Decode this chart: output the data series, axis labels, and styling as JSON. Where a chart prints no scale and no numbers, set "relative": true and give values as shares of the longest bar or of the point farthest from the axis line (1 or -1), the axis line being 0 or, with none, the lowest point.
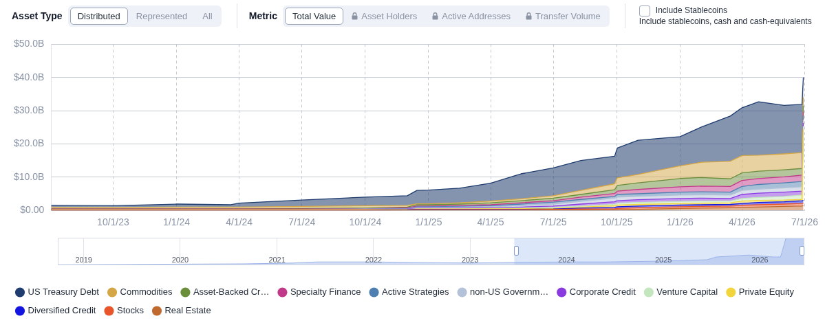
{
  "chart_data": [
    {
      "type": "area",
      "stacked": true,
      "legend": "bottom",
      "grid": true,
      "annotations": [
        "Asset Type",
        "Distributed",
        "Represented",
        "All",
        "Metric",
        "Total Value",
        "Asset Holders",
        "Active Addresses",
        "Transfer Volume",
        "Include Stablecoins",
        "Include stablecoins, cash and cash-equivalents"
      ],
      "xlim": [
        "2023-07-03",
        "2026-07-01"
      ],
      "xticks": [
        {
          "value": "2023-10-01",
          "label": "10/1/23"
        },
        {
          "value": "2024-01-01",
          "label": "1/1/24"
        },
        {
          "value": "2024-04-01",
          "label": "4/1/24"
        },
        {
          "value": "2024-07-01",
          "label": "7/1/24"
        },
        {
          "value": "2024-10-01",
          "label": "10/1/24"
        },
        {
          "value": "2025-01-01",
          "label": "1/1/25"
        },
        {
          "value": "2025-04-01",
          "label": "4/1/25"
        },
        {
          "value": "2025-07-01",
          "label": "7/1/25"
        },
        {
          "value": "2025-10-01",
          "label": "10/1/25"
        },
        {
          "value": "2026-01-01",
          "label": "1/1/26"
        },
        {
          "value": "2026-04-01",
          "label": "4/1/26"
        },
        {
          "value": "2026-07-01",
          "label": "7/1/26"
        }
      ],
      "ylim": [
        0,
        50
      ],
      "yticks": [
        {
          "value": 0,
          "label": "$0.00"
        },
        {
          "value": 10,
          "label": "$10.0B"
        },
        {
          "value": 20,
          "label": "$20.0B"
        },
        {
          "value": 30,
          "label": "$30.0B"
        },
        {
          "value": 40,
          "label": "$40.0B"
        },
        {
          "value": 50,
          "label": "$50.0B"
        }
      ],
      "x": [
        "2023-07-03",
        "2023-10-01",
        "2024-01-01",
        "2024-03-20",
        "2024-04-01",
        "2024-07-01",
        "2024-10-01",
        "2024-12-01",
        "2024-12-15",
        "2025-01-01",
        "2025-02-15",
        "2025-04-01",
        "2025-05-15",
        "2025-07-01",
        "2025-08-10",
        "2025-09-28",
        "2025-10-02",
        "2025-11-01",
        "2026-01-01",
        "2026-02-01",
        "2026-03-15",
        "2026-04-01",
        "2026-04-25",
        "2026-06-01",
        "2026-06-27",
        "2026-06-29"
      ],
      "series": [
        {
          "name": "Real Estate",
          "color": "#c06a30",
          "values": [
            0,
            0,
            0,
            0,
            0,
            0,
            0,
            0.1,
            0.1,
            0.1,
            0.1,
            0.1,
            0.1,
            0.1,
            0.1,
            0.2,
            0.2,
            0.3,
            0.6,
            0.7,
            0.8,
            0.9,
            1.0,
            1.2,
            1.3,
            1.4
          ]
        },
        {
          "name": "Stocks",
          "color": "#e8552a",
          "values": [
            0.1,
            0.1,
            0.1,
            0.1,
            0.1,
            0.1,
            0.1,
            0,
            0.1,
            0.1,
            0.1,
            0.1,
            0.1,
            0.2,
            0.3,
            0.3,
            0.4,
            0.5,
            0.5,
            0.5,
            0.5,
            0.6,
            0.7,
            0.7,
            0.8,
            0.8
          ]
        },
        {
          "name": "Diversified Credit",
          "color": "#1414e0",
          "values": [
            0,
            0,
            0,
            0,
            0,
            0,
            0,
            0.1,
            0.1,
            0.1,
            0.1,
            0.1,
            0.1,
            0.1,
            0.3,
            0.4,
            0.5,
            0.5,
            0.5,
            0.5,
            0.5,
            0.6,
            0.7,
            0.7,
            0.8,
            0.8
          ]
        },
        {
          "name": "Private Equity",
          "color": "#f2d43c",
          "values": [
            0.1,
            0.1,
            0.1,
            0.1,
            0.1,
            0.1,
            0.1,
            0,
            0.1,
            0.1,
            0.1,
            0.2,
            0.2,
            0.2,
            0.3,
            0.5,
            0.5,
            0.5,
            0.5,
            0.5,
            0.5,
            0.7,
            0.6,
            0.5,
            0.4,
            21.5
          ]
        },
        {
          "name": "Venture Capital",
          "color": "#c4e6bf",
          "values": [
            0,
            0,
            0,
            0,
            0,
            0,
            0,
            0.1,
            0.1,
            0.1,
            0.1,
            0.1,
            0.2,
            0.3,
            0.3,
            0.4,
            0.6,
            0.6,
            0.6,
            0.6,
            0.5,
            0.8,
            0.9,
            1.1,
            1.3,
            0.8
          ]
        },
        {
          "name": "Corporate Credit",
          "color": "#8a3be0",
          "values": [
            0.1,
            0.1,
            0.1,
            0.1,
            0.1,
            0.1,
            0.1,
            0.1,
            0.2,
            0.2,
            0.2,
            0.2,
            0.3,
            0.4,
            0.6,
            0.8,
            0.7,
            0.8,
            0.9,
            0.9,
            0.8,
            1.2,
            1.3,
            1.3,
            1.2,
            1.0
          ]
        },
        {
          "name": "non-US Governm…",
          "color": "#b3c2d8",
          "values": [
            0,
            0,
            0,
            0,
            0,
            0,
            0.1,
            0.1,
            0.2,
            0.2,
            0.3,
            0.3,
            0.4,
            0.6,
            0.8,
            1.1,
            1.1,
            1.0,
            1.0,
            1.0,
            1.0,
            1.2,
            1.2,
            1.3,
            1.3,
            1.0
          ]
        },
        {
          "name": "Active Strategies",
          "color": "#4f7fb0",
          "values": [
            0,
            0,
            0,
            0,
            0,
            0,
            0,
            0.1,
            0.2,
            0.2,
            0.2,
            0.3,
            0.5,
            0.6,
            0.6,
            0.5,
            0.8,
            0.8,
            0.9,
            0.9,
            0.9,
            1.2,
            1.4,
            1.5,
            1.6,
            1.2
          ]
        },
        {
          "name": "Specialty Finance",
          "color": "#c13a8a",
          "values": [
            0.1,
            0.1,
            0.1,
            0.1,
            0.1,
            0.1,
            0.1,
            0.2,
            0.2,
            0.2,
            0.3,
            0.3,
            0.4,
            0.4,
            0.7,
            0.9,
            1.0,
            1.3,
            1.6,
            1.7,
            1.7,
            1.8,
            1.8,
            1.8,
            1.9,
            1.2
          ]
        },
        {
          "name": "Asset-Backed Cr…",
          "color": "#6b8e3a",
          "values": [
            0.1,
            0.1,
            0.1,
            0.1,
            0.1,
            0.2,
            0.2,
            0.2,
            0.4,
            0.4,
            0.4,
            0.6,
            0.6,
            0.8,
            0.8,
            1.1,
            1.7,
            2.0,
            2.5,
            2.6,
            2.3,
            2.3,
            2.2,
            2.1,
            2.0,
            1.8
          ]
        },
        {
          "name": "Commodities",
          "color": "#d4a646",
          "values": [
            0.4,
            0.4,
            0.5,
            0.5,
            0.5,
            0.6,
            0.7,
            0.5,
            0.3,
            0.3,
            0.4,
            0.5,
            0.6,
            0.7,
            1.2,
            1.8,
            2.3,
            2.5,
            3.8,
            4.6,
            5.3,
            5.2,
            4.8,
            4.8,
            4.8,
            2.5
          ]
        },
        {
          "name": "US Treasury Debt",
          "color": "#1f3c6e",
          "values": [
            0.6,
            0.5,
            0.9,
            0.7,
            1.2,
            1.9,
            2.6,
            2.9,
            4.0,
            4.1,
            4.4,
            5.4,
            7.5,
            8.4,
            9.0,
            8.3,
            9.0,
            10.3,
            8.8,
            10.6,
            13.6,
            14.4,
            16.1,
            14.6,
            14.5,
            6.0
          ]
        }
      ]
    },
    {
      "type": "area",
      "relative": true,
      "grid": "x",
      "tick_labels": "x",
      "xlim": [
        "2018-09-25",
        "2026-06-18"
      ],
      "xticks": [
        "2019",
        "2020",
        "2021",
        "2022",
        "2023",
        "2024",
        "2025",
        "2026"
      ],
      "bands": [
        {
          "axis": "x",
          "from": "2023-06-17",
          "to": "2026-06-18",
          "color": "#dde7fa"
        }
      ],
      "x": [
        "2018-09-25",
        "2019-06-01",
        "2020-01-01",
        "2020-09-01",
        "2021-03-01",
        "2021-06-01",
        "2022-01-01",
        "2022-06-01",
        "2023-01-01",
        "2023-06-01",
        "2024-01-01",
        "2024-06-01",
        "2025-01-01",
        "2025-06-15",
        "2025-07-20",
        "2025-11-20",
        "2026-02-20",
        "2026-03-20",
        "2026-04-10",
        "2026-06-18"
      ],
      "series": [
        {
          "color": "#9bb4e8",
          "values": [
            0.02,
            0.03,
            0.04,
            0.05,
            0.08,
            0.12,
            0.12,
            0.1,
            0.08,
            0.1,
            0.12,
            0.12,
            0.15,
            0.2,
            0.3,
            0.37,
            0.3,
            0.3,
            1,
            1
          ]
        }
      ]
    }
  ]
}
